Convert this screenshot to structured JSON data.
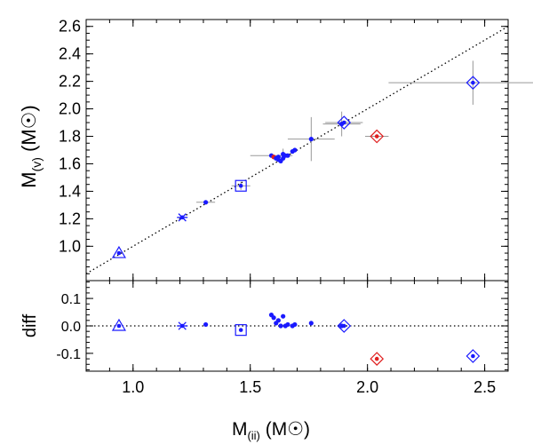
{
  "chart_data": [
    {
      "type": "scatter",
      "panel": "top",
      "xlim": [
        0.8,
        2.6
      ],
      "ylim": [
        0.75,
        2.65
      ],
      "ylabel": {
        "main": "M",
        "sub": "(v)",
        "unit_open": " (M",
        "unit_close": ")"
      },
      "y_ticks": [
        1.0,
        1.2,
        1.4,
        1.6,
        1.8,
        2.0,
        2.2,
        2.4,
        2.6
      ],
      "y_tick_labels": [
        "1.0",
        "1.2",
        "1.4",
        "1.6",
        "1.8",
        "2.0",
        "2.2",
        "2.4",
        "2.6"
      ],
      "reference_line": {
        "type": "y=x",
        "style": "dotted"
      },
      "points": [
        {
          "x": 0.94,
          "y": 0.95,
          "marker": "triangle",
          "color": "#1a1aff"
        },
        {
          "x": 1.21,
          "y": 1.21,
          "marker": "asterisk",
          "color": "#1a1aff"
        },
        {
          "x": 1.31,
          "y": 1.32,
          "marker": "dot",
          "color": "#1a1aff",
          "xerr": 0.04
        },
        {
          "x": 1.46,
          "y": 1.44,
          "marker": "square",
          "color": "#1a1aff",
          "xerr": 0.04,
          "yerr": 0.03
        },
        {
          "x": 1.59,
          "y": 1.66,
          "marker": "dot",
          "color": "#1a1aff",
          "xerr": 0.09
        },
        {
          "x": 1.6,
          "y": 1.65,
          "marker": "dot",
          "color": "#e02020"
        },
        {
          "x": 1.61,
          "y": 1.64,
          "marker": "dot",
          "color": "#1a1aff"
        },
        {
          "x": 1.62,
          "y": 1.65,
          "marker": "dot",
          "color": "#1a1aff"
        },
        {
          "x": 1.62,
          "y": 1.63,
          "marker": "dot",
          "color": "#1a1aff"
        },
        {
          "x": 1.63,
          "y": 1.62,
          "marker": "dot",
          "color": "#1a1aff"
        },
        {
          "x": 1.64,
          "y": 1.64,
          "marker": "dot",
          "color": "#1a1aff"
        },
        {
          "x": 1.65,
          "y": 1.66,
          "marker": "dot",
          "color": "#1a1aff"
        },
        {
          "x": 1.64,
          "y": 1.67,
          "marker": "dot",
          "color": "#1a1aff",
          "yerr": 0.04
        },
        {
          "x": 1.66,
          "y": 1.66,
          "marker": "dot",
          "color": "#1a1aff"
        },
        {
          "x": 1.68,
          "y": 1.69,
          "marker": "dot",
          "color": "#1a1aff"
        },
        {
          "x": 1.69,
          "y": 1.7,
          "marker": "dot",
          "color": "#1a1aff"
        },
        {
          "x": 1.76,
          "y": 1.78,
          "marker": "dot",
          "color": "#1a1aff",
          "xerr": 0.1,
          "yerr": 0.16
        },
        {
          "x": 1.89,
          "y": 1.89,
          "marker": "dot",
          "color": "#1a1aff",
          "xerr": 0.08,
          "yerr": 0.09
        },
        {
          "x": 1.9,
          "y": 1.9,
          "marker": "diamond",
          "color": "#1a1aff",
          "xerr": 0.08
        },
        {
          "x": 2.04,
          "y": 1.8,
          "marker": "diamond",
          "color": "#e02020",
          "xerr": 0.05
        },
        {
          "x": 2.45,
          "y": 2.19,
          "marker": "diamond",
          "color": "#1a1aff",
          "xerr": 0.36,
          "yerr": 0.16
        }
      ]
    },
    {
      "type": "scatter",
      "panel": "bottom",
      "xlim": [
        0.8,
        2.6
      ],
      "ylim": [
        -0.165,
        0.165
      ],
      "xlabel": {
        "main": "M",
        "sub": "(ii)",
        "unit_open": " (M",
        "unit_close": ")"
      },
      "ylabel": "diff",
      "x_ticks": [
        1.0,
        1.5,
        2.0,
        2.5
      ],
      "x_tick_labels": [
        "1.0",
        "1.5",
        "2.0",
        "2.5"
      ],
      "y_ticks": [
        0.1,
        0.0,
        -0.1
      ],
      "y_tick_labels": [
        "0.1",
        "0.0",
        "-0.1"
      ],
      "reference_line": {
        "type": "y=0",
        "style": "dotted"
      },
      "points": [
        {
          "x": 0.94,
          "y": 0.0,
          "marker": "triangle",
          "color": "#1a1aff"
        },
        {
          "x": 1.21,
          "y": 0.0,
          "marker": "asterisk",
          "color": "#1a1aff"
        },
        {
          "x": 1.31,
          "y": 0.005,
          "marker": "dot",
          "color": "#1a1aff"
        },
        {
          "x": 1.46,
          "y": -0.015,
          "marker": "square",
          "color": "#1a1aff"
        },
        {
          "x": 1.59,
          "y": 0.04,
          "marker": "dot",
          "color": "#1a1aff"
        },
        {
          "x": 1.6,
          "y": 0.03,
          "marker": "dot",
          "color": "#1a1aff"
        },
        {
          "x": 1.61,
          "y": 0.01,
          "marker": "dot",
          "color": "#1a1aff"
        },
        {
          "x": 1.62,
          "y": 0.02,
          "marker": "dot",
          "color": "#1a1aff"
        },
        {
          "x": 1.63,
          "y": 0.0,
          "marker": "dot",
          "color": "#1a1aff"
        },
        {
          "x": 1.64,
          "y": 0.035,
          "marker": "dot",
          "color": "#1a1aff"
        },
        {
          "x": 1.65,
          "y": 0.0,
          "marker": "dot",
          "color": "#1a1aff"
        },
        {
          "x": 1.66,
          "y": 0.005,
          "marker": "dot",
          "color": "#1a1aff"
        },
        {
          "x": 1.68,
          "y": 0.0,
          "marker": "dot",
          "color": "#1a1aff"
        },
        {
          "x": 1.69,
          "y": 0.005,
          "marker": "dot",
          "color": "#1a1aff"
        },
        {
          "x": 1.76,
          "y": 0.01,
          "marker": "dot",
          "color": "#1a1aff"
        },
        {
          "x": 1.89,
          "y": 0.0,
          "marker": "dot",
          "color": "#1a1aff"
        },
        {
          "x": 1.9,
          "y": 0.0,
          "marker": "diamond",
          "color": "#1a1aff"
        },
        {
          "x": 2.04,
          "y": -0.12,
          "marker": "diamond",
          "color": "#e02020"
        },
        {
          "x": 2.45,
          "y": -0.11,
          "marker": "diamond",
          "color": "#1a1aff"
        }
      ]
    }
  ]
}
